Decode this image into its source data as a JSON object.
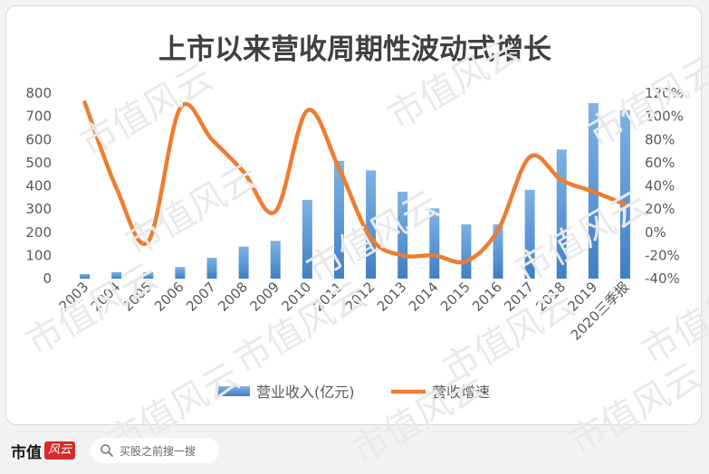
{
  "footer": {
    "brand_name": "市值",
    "brand_logo_text": "风云",
    "search_text": "买股之前搜一搜",
    "search_icon": "search-icon"
  },
  "watermark_text": "市值风云",
  "colors": {
    "bar": "#5b9bd5",
    "line": "#ed7d31",
    "axis_text": "#595959",
    "title": "#404040"
  },
  "chart_data": {
    "type": "bar",
    "title": "上市以来营收周期性波动式增长",
    "categories": [
      "2003",
      "2004",
      "2005",
      "2006",
      "2007",
      "2008",
      "2009",
      "2010",
      "2011",
      "2012",
      "2013",
      "2014",
      "2015",
      "2016",
      "2017",
      "2018",
      "2019",
      "2020三季报"
    ],
    "series": [
      {
        "name": "营业收入(亿元)",
        "type": "bar",
        "axis": "left",
        "values": [
          20,
          28,
          28,
          50,
          90,
          138,
          163,
          340,
          508,
          467,
          375,
          303,
          234,
          234,
          383,
          557,
          757,
          726
        ]
      },
      {
        "name": "营收增速",
        "type": "line",
        "axis": "right",
        "values": [
          112,
          38,
          -8,
          107,
          80,
          52,
          18,
          105,
          55,
          -5,
          -20,
          -20,
          -25,
          2,
          65,
          45,
          35,
          24
        ]
      }
    ],
    "ylim_left": [
      0,
      800
    ],
    "yticks_left": [
      0,
      100,
      200,
      300,
      400,
      500,
      600,
      700,
      800
    ],
    "ylim_right": [
      -40,
      120
    ],
    "yticks_right": [
      "-40%",
      "-20%",
      "0%",
      "20%",
      "40%",
      "60%",
      "80%",
      "100%",
      "120%"
    ],
    "legend_position": "bottom",
    "grid": false
  }
}
